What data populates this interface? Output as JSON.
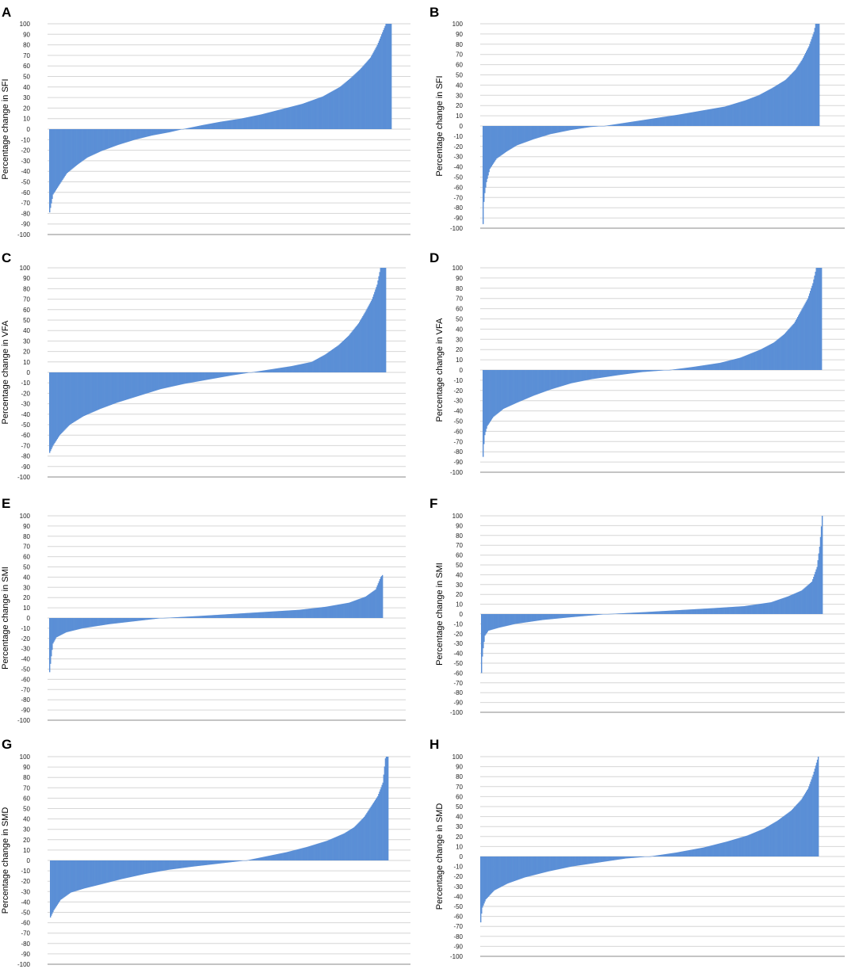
{
  "chart_data": [
    {
      "panel": "A",
      "type": "bar",
      "ylabel": "Percentage change in SFI",
      "ylim": [
        -100,
        100
      ],
      "yticks": [
        100,
        90,
        80,
        70,
        60,
        50,
        40,
        30,
        20,
        10,
        0,
        -10,
        -20,
        -30,
        -40,
        -50,
        -60,
        -70,
        -80,
        -90,
        -100
      ],
      "grid": true,
      "bar_color": "#5b8fd6",
      "n_bars": 400,
      "sorted_profile": [
        [
          0,
          -79
        ],
        [
          0.01,
          -62
        ],
        [
          0.03,
          -52
        ],
        [
          0.05,
          -42
        ],
        [
          0.08,
          -34
        ],
        [
          0.11,
          -27
        ],
        [
          0.15,
          -21
        ],
        [
          0.2,
          -15
        ],
        [
          0.25,
          -10
        ],
        [
          0.3,
          -6
        ],
        [
          0.35,
          -3
        ],
        [
          0.39,
          0
        ],
        [
          0.45,
          4
        ],
        [
          0.5,
          7
        ],
        [
          0.56,
          10
        ],
        [
          0.62,
          14
        ],
        [
          0.68,
          19
        ],
        [
          0.74,
          24
        ],
        [
          0.8,
          31
        ],
        [
          0.85,
          40
        ],
        [
          0.88,
          48
        ],
        [
          0.91,
          57
        ],
        [
          0.94,
          68
        ],
        [
          0.96,
          80
        ],
        [
          0.975,
          92
        ],
        [
          0.985,
          100
        ],
        [
          1.0,
          100
        ]
      ]
    },
    {
      "panel": "B",
      "type": "bar",
      "ylabel": "Percentage change in SFI",
      "ylim": [
        -100,
        100
      ],
      "yticks": [
        100,
        90,
        80,
        70,
        60,
        50,
        40,
        30,
        20,
        10,
        0,
        -10,
        -20,
        -30,
        -40,
        -50,
        -60,
        -70,
        -80,
        -90,
        -100
      ],
      "grid": true,
      "bar_color": "#5b8fd6",
      "n_bars": 400,
      "sorted_profile": [
        [
          0,
          -96
        ],
        [
          0.003,
          -70
        ],
        [
          0.01,
          -55
        ],
        [
          0.02,
          -42
        ],
        [
          0.04,
          -32
        ],
        [
          0.07,
          -25
        ],
        [
          0.1,
          -19
        ],
        [
          0.15,
          -13
        ],
        [
          0.2,
          -8
        ],
        [
          0.26,
          -4
        ],
        [
          0.32,
          -1
        ],
        [
          0.36,
          0
        ],
        [
          0.42,
          3
        ],
        [
          0.5,
          7
        ],
        [
          0.58,
          11
        ],
        [
          0.65,
          15
        ],
        [
          0.72,
          19
        ],
        [
          0.78,
          25
        ],
        [
          0.82,
          30
        ],
        [
          0.86,
          37
        ],
        [
          0.9,
          45
        ],
        [
          0.93,
          55
        ],
        [
          0.95,
          65
        ],
        [
          0.97,
          78
        ],
        [
          0.985,
          92
        ],
        [
          0.99,
          100
        ],
        [
          1.0,
          100
        ]
      ]
    },
    {
      "panel": "C",
      "type": "bar",
      "ylabel": "Percentage change in VFA",
      "ylim": [
        -100,
        100
      ],
      "yticks": [
        100,
        90,
        80,
        70,
        60,
        50,
        40,
        30,
        20,
        10,
        0,
        -10,
        -20,
        -30,
        -40,
        -50,
        -60,
        -70,
        -80,
        -90,
        -100
      ],
      "grid": true,
      "bar_color": "#5b8fd6",
      "n_bars": 400,
      "sorted_profile": [
        [
          0,
          -77
        ],
        [
          0.01,
          -70
        ],
        [
          0.03,
          -60
        ],
        [
          0.06,
          -50
        ],
        [
          0.1,
          -42
        ],
        [
          0.15,
          -35
        ],
        [
          0.2,
          -29
        ],
        [
          0.27,
          -22
        ],
        [
          0.33,
          -16
        ],
        [
          0.4,
          -11
        ],
        [
          0.47,
          -7
        ],
        [
          0.54,
          -3
        ],
        [
          0.6,
          0
        ],
        [
          0.66,
          3
        ],
        [
          0.72,
          6
        ],
        [
          0.78,
          10
        ],
        [
          0.82,
          17
        ],
        [
          0.86,
          26
        ],
        [
          0.89,
          35
        ],
        [
          0.92,
          47
        ],
        [
          0.94,
          58
        ],
        [
          0.96,
          70
        ],
        [
          0.975,
          84
        ],
        [
          0.985,
          100
        ],
        [
          1.0,
          100
        ]
      ]
    },
    {
      "panel": "D",
      "type": "bar",
      "ylabel": "Percentage change in VFA",
      "ylim": [
        -100,
        100
      ],
      "yticks": [
        100,
        90,
        80,
        70,
        60,
        50,
        40,
        30,
        20,
        10,
        0,
        -10,
        -20,
        -30,
        -40,
        -50,
        -60,
        -70,
        -80,
        -90,
        -100
      ],
      "grid": true,
      "bar_color": "#5b8fd6",
      "n_bars": 400,
      "sorted_profile": [
        [
          0,
          -85
        ],
        [
          0.004,
          -65
        ],
        [
          0.012,
          -55
        ],
        [
          0.03,
          -46
        ],
        [
          0.06,
          -38
        ],
        [
          0.1,
          -32
        ],
        [
          0.15,
          -25
        ],
        [
          0.2,
          -19
        ],
        [
          0.26,
          -13
        ],
        [
          0.32,
          -9
        ],
        [
          0.4,
          -5
        ],
        [
          0.47,
          -2
        ],
        [
          0.55,
          0
        ],
        [
          0.62,
          3
        ],
        [
          0.7,
          7
        ],
        [
          0.76,
          12
        ],
        [
          0.82,
          20
        ],
        [
          0.86,
          27
        ],
        [
          0.89,
          35
        ],
        [
          0.92,
          46
        ],
        [
          0.94,
          58
        ],
        [
          0.96,
          70
        ],
        [
          0.975,
          85
        ],
        [
          0.985,
          100
        ],
        [
          1.0,
          100
        ]
      ]
    },
    {
      "panel": "E",
      "type": "bar",
      "ylabel": "Percentage change in SMI",
      "ylim": [
        -100,
        100
      ],
      "yticks": [
        100,
        90,
        80,
        70,
        60,
        50,
        40,
        30,
        20,
        10,
        0,
        -10,
        -20,
        -30,
        -40,
        -50,
        -60,
        -70,
        -80,
        -90,
        -100
      ],
      "grid": true,
      "bar_color": "#5b8fd6",
      "n_bars": 400,
      "sorted_profile": [
        [
          0,
          -53
        ],
        [
          0.004,
          -40
        ],
        [
          0.01,
          -25
        ],
        [
          0.02,
          -19
        ],
        [
          0.05,
          -14
        ],
        [
          0.1,
          -10
        ],
        [
          0.18,
          -6
        ],
        [
          0.26,
          -3
        ],
        [
          0.34,
          0
        ],
        [
          0.45,
          2
        ],
        [
          0.55,
          4
        ],
        [
          0.65,
          6
        ],
        [
          0.75,
          8
        ],
        [
          0.83,
          11
        ],
        [
          0.9,
          15
        ],
        [
          0.95,
          21
        ],
        [
          0.98,
          28
        ],
        [
          0.995,
          40
        ],
        [
          1.0,
          42
        ]
      ]
    },
    {
      "panel": "F",
      "type": "bar",
      "ylabel": "Percentage change in SMI",
      "ylim": [
        -100,
        100
      ],
      "yticks": [
        100,
        90,
        80,
        70,
        60,
        50,
        40,
        30,
        20,
        10,
        0,
        -10,
        -20,
        -30,
        -40,
        -50,
        -60,
        -70,
        -80,
        -90,
        -100
      ],
      "grid": true,
      "bar_color": "#5b8fd6",
      "n_bars": 400,
      "sorted_profile": [
        [
          0,
          -60
        ],
        [
          0.003,
          -40
        ],
        [
          0.01,
          -22
        ],
        [
          0.02,
          -17
        ],
        [
          0.05,
          -14
        ],
        [
          0.1,
          -10
        ],
        [
          0.18,
          -6
        ],
        [
          0.27,
          -3
        ],
        [
          0.37,
          0
        ],
        [
          0.48,
          2
        ],
        [
          0.58,
          4
        ],
        [
          0.68,
          6
        ],
        [
          0.77,
          8
        ],
        [
          0.85,
          12
        ],
        [
          0.9,
          18
        ],
        [
          0.94,
          24
        ],
        [
          0.97,
          33
        ],
        [
          0.985,
          48
        ],
        [
          0.993,
          70
        ],
        [
          1.0,
          100
        ]
      ]
    },
    {
      "panel": "G",
      "type": "bar",
      "ylabel": "Percentage change in SMD",
      "ylim": [
        -100,
        100
      ],
      "yticks": [
        100,
        90,
        80,
        70,
        60,
        50,
        40,
        30,
        20,
        10,
        0,
        -10,
        -20,
        -30,
        -40,
        -50,
        -60,
        -70,
        -80,
        -90,
        -100
      ],
      "grid": true,
      "bar_color": "#5b8fd6",
      "n_bars": 400,
      "sorted_profile": [
        [
          0,
          -55
        ],
        [
          0.01,
          -48
        ],
        [
          0.03,
          -38
        ],
        [
          0.06,
          -31
        ],
        [
          0.1,
          -27
        ],
        [
          0.15,
          -23
        ],
        [
          0.21,
          -18
        ],
        [
          0.28,
          -13
        ],
        [
          0.35,
          -9
        ],
        [
          0.42,
          -6
        ],
        [
          0.5,
          -3
        ],
        [
          0.58,
          0
        ],
        [
          0.64,
          4
        ],
        [
          0.7,
          8
        ],
        [
          0.76,
          13
        ],
        [
          0.82,
          19
        ],
        [
          0.87,
          26
        ],
        [
          0.9,
          32
        ],
        [
          0.93,
          42
        ],
        [
          0.95,
          52
        ],
        [
          0.97,
          62
        ],
        [
          0.985,
          75
        ],
        [
          0.993,
          100
        ],
        [
          1.0,
          100
        ]
      ]
    },
    {
      "panel": "H",
      "type": "bar",
      "ylabel": "Percentage change in SMD",
      "ylim": [
        -100,
        100
      ],
      "yticks": [
        100,
        90,
        80,
        70,
        60,
        50,
        40,
        30,
        20,
        10,
        0,
        -10,
        -20,
        -30,
        -40,
        -50,
        -60,
        -70,
        -80,
        -90,
        -100
      ],
      "grid": true,
      "bar_color": "#5b8fd6",
      "n_bars": 400,
      "sorted_profile": [
        [
          0,
          -66
        ],
        [
          0.004,
          -52
        ],
        [
          0.015,
          -43
        ],
        [
          0.04,
          -34
        ],
        [
          0.08,
          -27
        ],
        [
          0.13,
          -21
        ],
        [
          0.2,
          -15
        ],
        [
          0.27,
          -10
        ],
        [
          0.35,
          -6
        ],
        [
          0.43,
          -2
        ],
        [
          0.5,
          0
        ],
        [
          0.58,
          4
        ],
        [
          0.66,
          9
        ],
        [
          0.73,
          15
        ],
        [
          0.79,
          21
        ],
        [
          0.84,
          28
        ],
        [
          0.88,
          36
        ],
        [
          0.92,
          46
        ],
        [
          0.95,
          57
        ],
        [
          0.97,
          68
        ],
        [
          0.985,
          82
        ],
        [
          1.0,
          100
        ]
      ]
    }
  ]
}
